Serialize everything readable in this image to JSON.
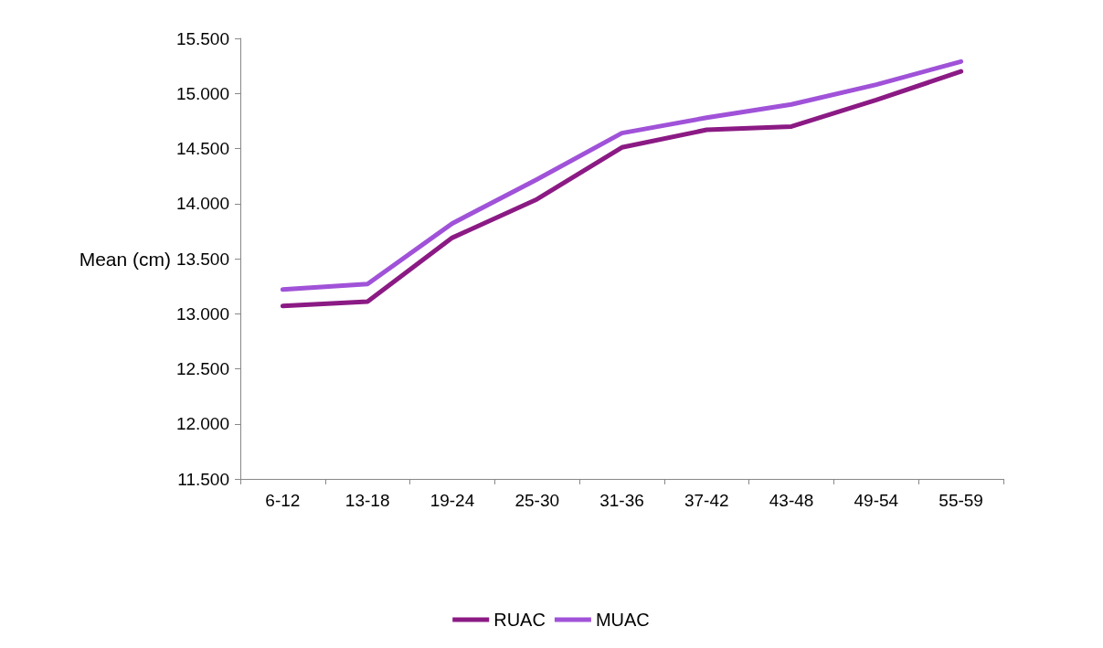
{
  "chart_data": {
    "type": "line",
    "ylabel": "Mean (cm)",
    "categories": [
      "6-12",
      "13-18",
      "19-24",
      "25-30",
      "31-36",
      "37-42",
      "43-48",
      "49-54",
      "55-59"
    ],
    "series": [
      {
        "name": "RUAC",
        "color": "#8b1a84",
        "values": [
          13.07,
          13.11,
          13.69,
          14.04,
          14.51,
          14.67,
          14.7,
          14.94,
          15.2
        ]
      },
      {
        "name": "MUAC",
        "color": "#a052d8",
        "values": [
          13.22,
          13.27,
          13.82,
          14.22,
          14.64,
          14.78,
          14.9,
          15.08,
          15.29
        ]
      }
    ],
    "ylim": [
      11.5,
      15.5
    ],
    "yticks": [
      {
        "value": 11.5,
        "label": "11.500"
      },
      {
        "value": 12,
        "label": "12.000"
      },
      {
        "value": 12.5,
        "label": "12.500"
      },
      {
        "value": 13,
        "label": "13.000"
      },
      {
        "value": 13.5,
        "label": "13.500"
      },
      {
        "value": 14,
        "label": "14.000"
      },
      {
        "value": 14.5,
        "label": "14.500"
      },
      {
        "value": 15,
        "label": "15.000"
      },
      {
        "value": 15.5,
        "label": "15.500"
      }
    ],
    "grid": false,
    "legend": "bottom",
    "marker": "none",
    "line_style": "solid"
  }
}
